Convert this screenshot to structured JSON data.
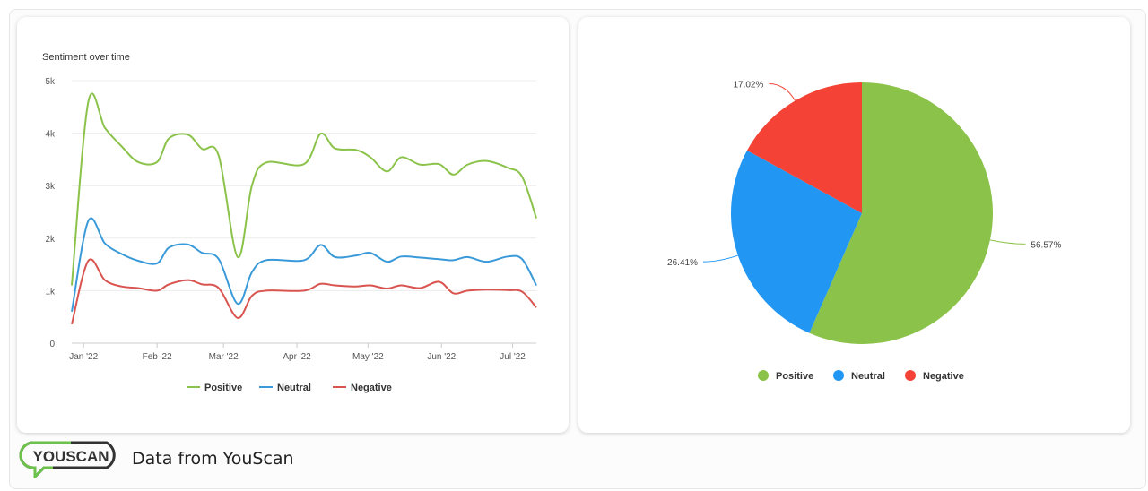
{
  "chart_data": [
    {
      "type": "line",
      "title": "Sentiment over time",
      "x": [
        "2021-12-27",
        "2022-01-03",
        "2022-01-10",
        "2022-01-17",
        "2022-01-24",
        "2022-02-01",
        "2022-02-06",
        "2022-02-14",
        "2022-02-20",
        "2022-02-27",
        "2022-03-07",
        "2022-03-13",
        "2022-03-19",
        "2022-04-04",
        "2022-04-11",
        "2022-04-17",
        "2022-04-26",
        "2022-05-02",
        "2022-05-09",
        "2022-05-15",
        "2022-05-23",
        "2022-05-31",
        "2022-06-06",
        "2022-06-12",
        "2022-06-20",
        "2022-06-29",
        "2022-07-05",
        "2022-07-11"
      ],
      "series": [
        {
          "name": "Positive",
          "color": "#8bc34a",
          "values": [
            1100,
            4600,
            4100,
            3750,
            3450,
            3450,
            3900,
            3970,
            3700,
            3570,
            1640,
            3000,
            3440,
            3410,
            3990,
            3710,
            3680,
            3540,
            3270,
            3540,
            3400,
            3410,
            3210,
            3400,
            3470,
            3340,
            3170,
            2380
          ]
        },
        {
          "name": "Neutral",
          "color": "#3a9ad9",
          "values": [
            600,
            2330,
            1900,
            1700,
            1570,
            1520,
            1820,
            1880,
            1720,
            1600,
            750,
            1350,
            1580,
            1580,
            1870,
            1640,
            1670,
            1720,
            1550,
            1650,
            1630,
            1600,
            1580,
            1640,
            1550,
            1650,
            1600,
            1100
          ]
        },
        {
          "name": "Negative",
          "color": "#d9534f",
          "values": [
            360,
            1570,
            1200,
            1080,
            1050,
            1000,
            1120,
            1200,
            1120,
            1050,
            480,
            900,
            1000,
            1000,
            1130,
            1100,
            1080,
            1100,
            1040,
            1100,
            1050,
            1170,
            950,
            1000,
            1020,
            1010,
            980,
            680
          ]
        }
      ],
      "y_ticks": [
        "0",
        "1k",
        "2k",
        "3k",
        "4k",
        "5k"
      ],
      "x_ticks": [
        {
          "date": "2022-01-01",
          "label": "Jan '22"
        },
        {
          "date": "2022-02-01",
          "label": "Feb '22"
        },
        {
          "date": "2022-03-01",
          "label": "Mar '22"
        },
        {
          "date": "2022-04-01",
          "label": "Apr '22"
        },
        {
          "date": "2022-05-01",
          "label": "May '22"
        },
        {
          "date": "2022-06-01",
          "label": "Jun '22"
        },
        {
          "date": "2022-07-01",
          "label": "Jul '22"
        }
      ],
      "ylim": [
        0,
        5000
      ],
      "xlim": [
        "2021-12-27",
        "2022-07-11"
      ],
      "grid": true,
      "legend": "bottom"
    },
    {
      "type": "pie",
      "slices": [
        {
          "name": "Positive",
          "value": 56.57,
          "label": "56.57%",
          "color": "#8bc34a"
        },
        {
          "name": "Neutral",
          "value": 26.41,
          "label": "26.41%",
          "color": "#2196f3"
        },
        {
          "name": "Negative",
          "value": 17.02,
          "label": "17.02%",
          "color": "#f44336"
        }
      ],
      "legend": "bottom"
    }
  ],
  "footer": {
    "logo_text": "YOUSCAN",
    "text": "Data from YouScan",
    "logo_colors": {
      "bubble": "#6cc24a",
      "text": "#333333"
    }
  }
}
